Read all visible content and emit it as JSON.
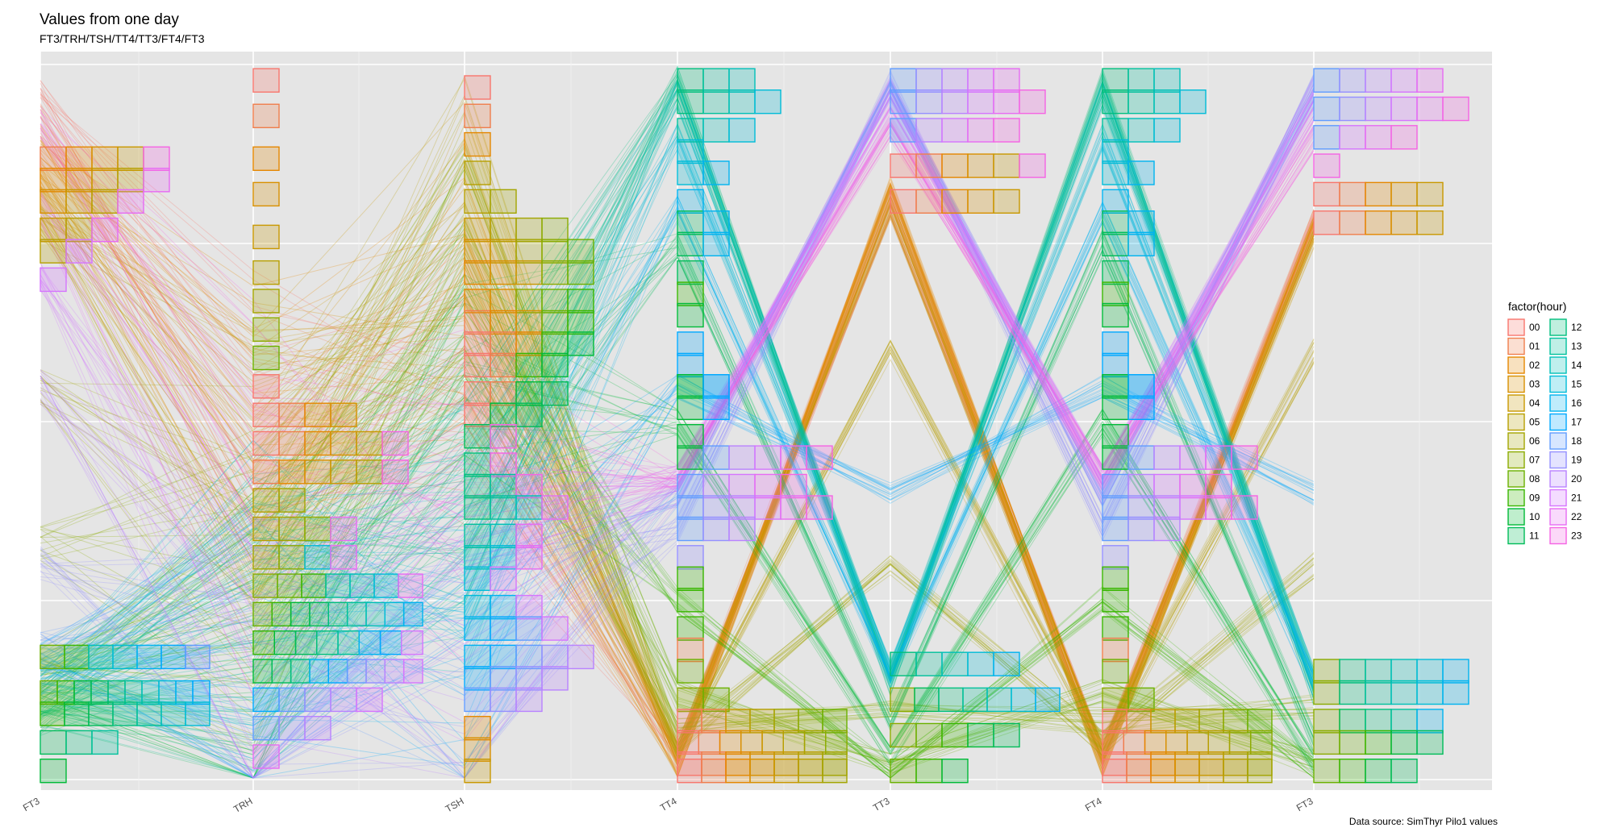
{
  "chart_data": {
    "type": "parallel-coordinates",
    "title": "Values from one day",
    "subtitle": "FT3/TRH/TSH/TT4/TT3/FT4/FT3",
    "caption": "Data source: SimThyr Pilo1 values",
    "axes": [
      "FT3",
      "TRH",
      "TSH",
      "TT4",
      "TT3",
      "FT4",
      "FT3"
    ],
    "legend_title": "factor(hour)",
    "legend_placement": "right",
    "grid": true,
    "hours": [
      "00",
      "01",
      "02",
      "03",
      "04",
      "05",
      "06",
      "07",
      "08",
      "09",
      "10",
      "11",
      "12",
      "13",
      "14",
      "15",
      "16",
      "17",
      "18",
      "19",
      "20",
      "21",
      "22",
      "23"
    ],
    "hour_colors": [
      "#F8766D",
      "#F07E4D",
      "#E58700",
      "#D89000",
      "#C99800",
      "#B79F00",
      "#A3A500",
      "#8BAB00",
      "#6BB100",
      "#39B600",
      "#00BA38",
      "#00BC59",
      "#00BF7D",
      "#00C19C",
      "#00C0B8",
      "#00BCD8",
      "#00B3F0",
      "#00A9FF",
      "#619CFF",
      "#9590FF",
      "#B983FF",
      "#D575FE",
      "#E76BF3",
      "#F564E3"
    ],
    "axis_distribution": {
      "FT3": {
        "levels": [
          0.87,
          0.84,
          0.81,
          0.77,
          0.74,
          0.7,
          0.17,
          0.12,
          0.09,
          0.05,
          0.01
        ],
        "hour_mean": [
          0.96,
          0.92,
          0.88,
          0.85,
          0.81,
          0.78,
          0.55,
          0.33,
          0.16,
          0.13,
          0.11,
          0.09,
          0.08,
          0.1,
          0.12,
          0.14,
          0.15,
          0.17,
          0.18,
          0.3,
          0.55,
          0.7,
          0.8,
          0.92
        ]
      },
      "TRH": {
        "levels": [
          0.98,
          0.93,
          0.87,
          0.82,
          0.76,
          0.71,
          0.67,
          0.63,
          0.59,
          0.55,
          0.51,
          0.47,
          0.43,
          0.39,
          0.35,
          0.31,
          0.27,
          0.23,
          0.19,
          0.15,
          0.11,
          0.07,
          0.03
        ],
        "hour_mean": [
          0.5,
          0.48,
          0.47,
          0.46,
          0.45,
          0.4,
          0.35,
          0.3,
          0.25,
          0.22,
          0.2,
          0.18,
          0.2,
          0.22,
          0.25,
          0.28,
          0.2,
          0.15,
          0.12,
          0.1,
          0.12,
          0.15,
          0.3,
          0.45
        ]
      },
      "TSH": {
        "levels": [
          0.97,
          0.93,
          0.89,
          0.85,
          0.81,
          0.77,
          0.74,
          0.71,
          0.67,
          0.64,
          0.61,
          0.58,
          0.54,
          0.51,
          0.48,
          0.44,
          0.41,
          0.38,
          0.34,
          0.31,
          0.28,
          0.24,
          0.21,
          0.17,
          0.14,
          0.11,
          0.07,
          0.04,
          0.01
        ],
        "hour_mean": [
          0.55,
          0.6,
          0.65,
          0.7,
          0.75,
          0.8,
          0.78,
          0.72,
          0.68,
          0.62,
          0.56,
          0.5,
          0.42,
          0.38,
          0.34,
          0.28,
          0.22,
          0.18,
          0.16,
          0.14,
          0.15,
          0.25,
          0.35,
          0.45
        ]
      },
      "TT4": {
        "levels": [
          0.98,
          0.95,
          0.91,
          0.88,
          0.85,
          0.81,
          0.78,
          0.75,
          0.71,
          0.68,
          0.65,
          0.61,
          0.58,
          0.55,
          0.55,
          0.52,
          0.48,
          0.45,
          0.41,
          0.38,
          0.35,
          0.31,
          0.28,
          0.25,
          0.21,
          0.18,
          0.15,
          0.11,
          0.08,
          0.05,
          0.02,
          0.01
        ],
        "hour_mean": [
          0.03,
          0.03,
          0.02,
          0.02,
          0.03,
          0.04,
          0.05,
          0.08,
          0.12,
          0.25,
          0.5,
          0.75,
          0.98,
          0.97,
          0.96,
          0.9,
          0.8,
          0.55,
          0.4,
          0.35,
          0.4,
          0.42,
          0.42,
          0.42
        ]
      },
      "TT3": {
        "levels": [
          0.98,
          0.95,
          0.91,
          0.86,
          0.81,
          0.16,
          0.11,
          0.06,
          0.01
        ],
        "hour_mean": [
          0.8,
          0.82,
          0.83,
          0.82,
          0.8,
          0.6,
          0.3,
          0.1,
          0.02,
          0.01,
          0.03,
          0.08,
          0.13,
          0.14,
          0.15,
          0.15,
          0.14,
          0.4,
          0.97,
          0.98,
          0.97,
          0.95,
          0.93,
          0.91
        ]
      },
      "FT4": {
        "levels": [
          0.98,
          0.95,
          0.91,
          0.88,
          0.85,
          0.81,
          0.78,
          0.75,
          0.71,
          0.68,
          0.65,
          0.61,
          0.58,
          0.55,
          0.55,
          0.52,
          0.48,
          0.45,
          0.41,
          0.38,
          0.35,
          0.31,
          0.28,
          0.25,
          0.21,
          0.18,
          0.15,
          0.11,
          0.08,
          0.05,
          0.02,
          0.01
        ],
        "hour_mean": [
          0.03,
          0.03,
          0.02,
          0.02,
          0.03,
          0.04,
          0.05,
          0.08,
          0.12,
          0.25,
          0.5,
          0.75,
          0.98,
          0.97,
          0.96,
          0.9,
          0.8,
          0.55,
          0.4,
          0.35,
          0.4,
          0.42,
          0.42,
          0.42
        ]
      },
      "FT3_end": {
        "levels": [
          0.98,
          0.94,
          0.9,
          0.86,
          0.82,
          0.78,
          0.15,
          0.12,
          0.08,
          0.05,
          0.01
        ],
        "hour_mean": [
          0.78,
          0.78,
          0.77,
          0.77,
          0.76,
          0.6,
          0.3,
          0.1,
          0.02,
          0.01,
          0.02,
          0.05,
          0.12,
          0.13,
          0.14,
          0.14,
          0.13,
          0.4,
          0.96,
          0.97,
          0.97,
          0.95,
          0.93,
          0.9
        ]
      }
    }
  }
}
